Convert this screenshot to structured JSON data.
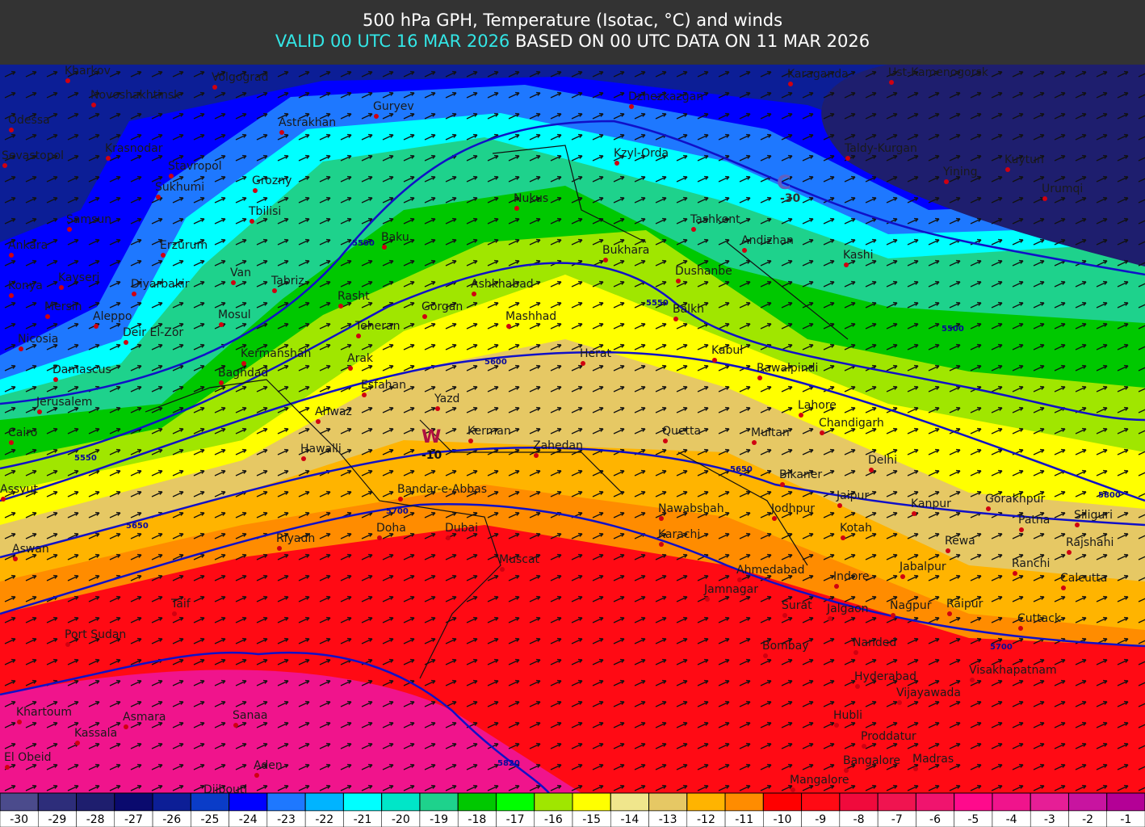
{
  "header": {
    "title": "500 hPa GPH, Temperature (Isotac, °C) and winds",
    "valid": "VALID 00 UTC 16 MAR 2026",
    "based": "BASED ON 00 UTC DATA ON 11 MAR 2026"
  },
  "cities": [
    "Kharkov",
    "Volgograd",
    "Novoshakhtinsk",
    "Odessa",
    "Guryev",
    "Astrakhan",
    "Krasnodar",
    "Stavropol",
    "Sevastopol",
    "Grozny",
    "Sukhumi",
    "Tbilisi",
    "Samsun",
    "Baku",
    "Nukus",
    "Erzurum",
    "Ankara",
    "Kayseri",
    "Van",
    "Tabriz",
    "Konya",
    "Diyarbakir",
    "Rasht",
    "Gorgan",
    "Ashkhabad",
    "Mashhad",
    "Mersin",
    "Aleppo",
    "Mosul",
    "Teheran",
    "Nicosia",
    "Deir El-Zor",
    "Kermanshah",
    "Arak",
    "Damascus",
    "Baghdad",
    "Esfahan",
    "Yazd",
    "Herat",
    "Jerusalem",
    "Ahwaz",
    "Kerman",
    "Cairo",
    "Hawalli",
    "Zahedan",
    "Quetta",
    "Multan",
    "Assyut",
    "Bandar-e-Abbas",
    "Bukhara",
    "Dushanbe",
    "Balkh",
    "Kabul",
    "Rawalpindi",
    "Lahore",
    "Chandigarh",
    "Delhi",
    "Tashkent",
    "Andizhan",
    "Kashi",
    "Kzyl-Orda",
    "Dzhezkazgan",
    "Karaganda",
    "Ust-Kamenogorsk",
    "Taldy-Kurgan",
    "Yining",
    "Kuytun",
    "Urumqi",
    "Doha",
    "Dubai",
    "Riyadh",
    "Muscat",
    "Nawabshah",
    "Karachi",
    "Jodhpur",
    "Jaipur",
    "Bikaner",
    "Kanpur",
    "Gorakhpur",
    "Patna",
    "Siliguri",
    "Kotah",
    "Rewa",
    "Rajshahi",
    "Aswan",
    "Ahmedabad",
    "Indore",
    "Jabalpur",
    "Ranchi",
    "Calcutta",
    "Jamnagar",
    "Taif",
    "Surat",
    "Jalgaon",
    "Nagpur",
    "Raipur",
    "Cuttack",
    "Port Sudan",
    "Bombay",
    "Nanded",
    "Hyderabad",
    "Visakhapatnam",
    "Vijayawada",
    "Khartoum",
    "Asmara",
    "Sanaa",
    "Hubli",
    "Kassala",
    "Proddatur",
    "El Obeid",
    "Aden",
    "Bangalore",
    "Madras",
    "Djibouti",
    "Mangalore"
  ],
  "contour_labels": [
    5500,
    5500,
    5550,
    5550,
    5600,
    5650,
    5650,
    5700,
    5700,
    5800,
    5820
  ],
  "symbols": [
    "W",
    "-10",
    "C",
    "-30"
  ],
  "legend": {
    "values": [
      -30,
      -29,
      -28,
      -27,
      -26,
      -25,
      -24,
      -23,
      -22,
      -21,
      -20,
      -19,
      -18,
      -17,
      -16,
      -15,
      -14,
      -13,
      -12,
      -11,
      -10,
      -9,
      -8,
      -7,
      -6,
      -5,
      -4,
      -3,
      -2,
      -1
    ],
    "colors": [
      "#4b4b8c",
      "#2d2d7a",
      "#1e1e6e",
      "#0a0a6e",
      "#0c1e96",
      "#0a3cc8",
      "#0000ff",
      "#1e78ff",
      "#00b4ff",
      "#00ffff",
      "#00e6c8",
      "#1ed28c",
      "#00c800",
      "#00ff00",
      "#a0e600",
      "#ffff00",
      "#f0e68c",
      "#e6c864",
      "#ffb400",
      "#ff8c00",
      "#ff0000",
      "#ff0a14",
      "#f00a3c",
      "#f01450",
      "#f0146e",
      "#ff0a8c",
      "#f0148c",
      "#e61e96",
      "#c814a0",
      "#b40096"
    ]
  }
}
